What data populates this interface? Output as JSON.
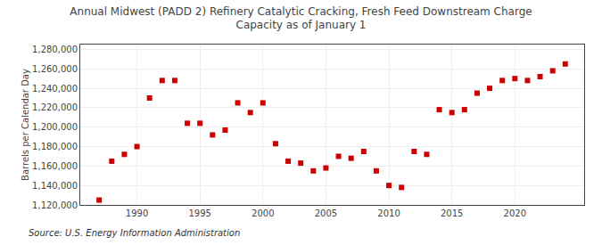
{
  "chart_data": {
    "type": "scatter",
    "title": "Annual Midwest (PADD 2) Refinery Catalytic Cracking, Fresh Feed Downstream Charge\nCapacity as of January 1",
    "ylabel": "Barrels per Calendar Day",
    "annotations": [
      "Source: U.S. Energy Information Administration"
    ],
    "x": [
      1987,
      1988,
      1989,
      1990,
      1991,
      1992,
      1993,
      1994,
      1995,
      1996,
      1997,
      1998,
      1999,
      2000,
      2001,
      2002,
      2003,
      2004,
      2005,
      2006,
      2007,
      2008,
      2009,
      2010,
      2011,
      2012,
      2013,
      2014,
      2015,
      2016,
      2017,
      2018,
      2019,
      2020,
      2021,
      2022,
      2023,
      2024
    ],
    "values": [
      1125000,
      1165000,
      1172000,
      1180000,
      1230000,
      1248000,
      1248000,
      1204000,
      1204000,
      1192000,
      1197000,
      1225000,
      1215000,
      1225000,
      1183000,
      1165000,
      1163000,
      1155000,
      1158000,
      1170000,
      1168000,
      1175000,
      1155000,
      1140000,
      1138000,
      1175000,
      1172000,
      1218000,
      1215000,
      1218000,
      1235000,
      1240000,
      1248000,
      1250000,
      1248000,
      1252000,
      1258000,
      1265000
    ],
    "color": "#cc0000",
    "marker": "square",
    "xlim": [
      1985.5,
      2025.5
    ],
    "xticks": [
      1990,
      1995,
      2000,
      2005,
      2010,
      2015,
      2020
    ],
    "ylim": [
      1120000,
      1285000
    ],
    "yticks": [
      {
        "value": 1120000,
        "label": "1,120,000"
      },
      {
        "value": 1140000,
        "label": "1,140,000"
      },
      {
        "value": 1160000,
        "label": "1,160,000"
      },
      {
        "value": 1180000,
        "label": "1,180,000"
      },
      {
        "value": 1200000,
        "label": "1,200,000"
      },
      {
        "value": 1220000,
        "label": "1,220,000"
      },
      {
        "value": 1240000,
        "label": "1,240,000"
      },
      {
        "value": 1260000,
        "label": "1,260,000"
      },
      {
        "value": 1280000,
        "label": "1,280,000"
      }
    ],
    "grid": true
  }
}
